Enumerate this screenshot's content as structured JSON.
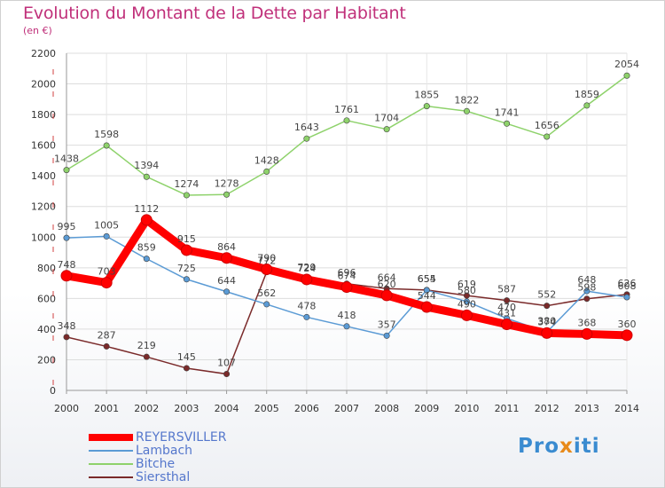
{
  "chart_data": {
    "type": "line",
    "title": "Evolution du Montant de la Dette par Habitant",
    "subtitle": "(en €)",
    "xlabel": "",
    "ylabel": "",
    "x": [
      2000,
      2001,
      2002,
      2003,
      2004,
      2005,
      2006,
      2007,
      2008,
      2009,
      2010,
      2011,
      2012,
      2013,
      2014
    ],
    "ylim": [
      0,
      2200
    ],
    "yticks": [
      0,
      200,
      400,
      600,
      800,
      1000,
      1200,
      1400,
      1600,
      1800,
      2000,
      2200
    ],
    "grid": true,
    "legend_position": "bottom-left",
    "series": [
      {
        "name": "REYERSVILLER",
        "color": "#ff0000",
        "values": [
          748,
          703,
          1112,
          915,
          864,
          790,
          724,
          674,
          620,
          544,
          490,
          431,
          374,
          368,
          360
        ]
      },
      {
        "name": "Lambach",
        "color": "#5b9bd5",
        "values": [
          995,
          1005,
          859,
          725,
          644,
          562,
          478,
          418,
          357,
          654,
          580,
          470,
          380,
          648,
          608
        ]
      },
      {
        "name": "Bitche",
        "color": "#8ed26b",
        "values": [
          1438,
          1598,
          1394,
          1274,
          1278,
          1428,
          1643,
          1761,
          1704,
          1855,
          1822,
          1741,
          1656,
          1859,
          2054
        ]
      },
      {
        "name": "Siersthal",
        "color": "#7a2a2a",
        "values": [
          348,
          287,
          219,
          145,
          107,
          772,
          729,
          696,
          664,
          655,
          619,
          587,
          552,
          598,
          626
        ]
      }
    ],
    "value_labels": {
      "REYERSVILLER": [
        "748",
        "703",
        "1112",
        "915",
        "864",
        "790",
        "724",
        "674",
        "620",
        "544",
        "490",
        "431",
        "374",
        "368",
        "360"
      ],
      "Lambach": [
        "995",
        "1005",
        "859",
        "725",
        "644",
        "562",
        "478",
        "418",
        "357",
        "654",
        "580",
        "470",
        "380",
        "648",
        "608"
      ],
      "Bitche": [
        "1438",
        "1598",
        "1394",
        "1274",
        "1278",
        "1428",
        "1643",
        "1761",
        "1704",
        "1855",
        "1822",
        "1741",
        "1656",
        "1859",
        "2054"
      ],
      "Siersthal": [
        "348",
        "287",
        "219",
        "145",
        "107",
        "772",
        "729",
        "696",
        "664",
        "655",
        "619",
        "587",
        "552",
        "598",
        "626"
      ]
    }
  },
  "legend": {
    "items": [
      "REYERSVILLER",
      "Lambach",
      "Bitche",
      "Siersthal"
    ]
  },
  "logo": {
    "prefix": "Pro",
    "x": "x",
    "suffix": "iti"
  }
}
